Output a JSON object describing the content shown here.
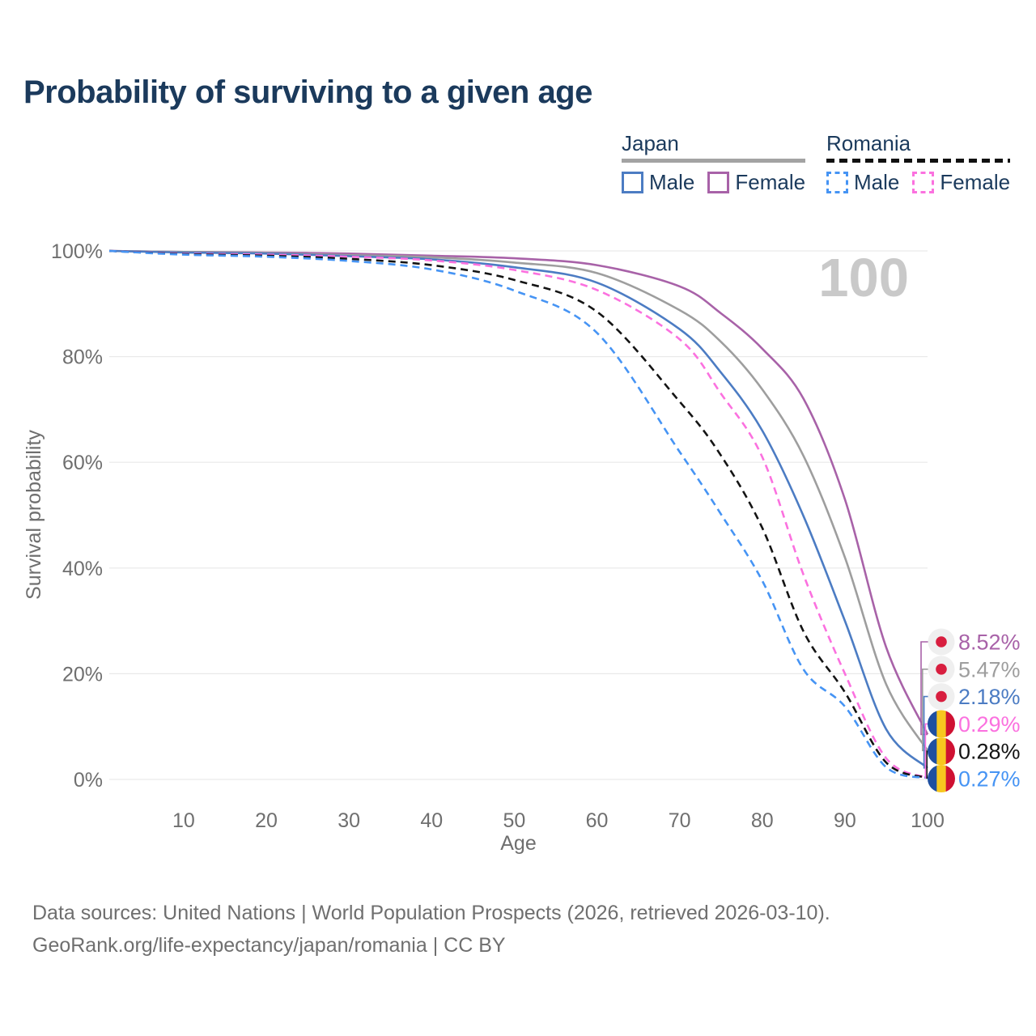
{
  "header": {
    "title": "Probability of surviving to a given age"
  },
  "legend": {
    "groups": [
      {
        "name": "Japan",
        "line_style": "solid",
        "items": [
          {
            "label": "Male",
            "color": "#4c7cc3"
          },
          {
            "label": "Female",
            "color": "#a862a8"
          }
        ]
      },
      {
        "name": "Romania",
        "line_style": "dashed",
        "items": [
          {
            "label": "Male",
            "color": "#4694f4"
          },
          {
            "label": "Female",
            "color": "#fb71df"
          }
        ]
      }
    ]
  },
  "chart_data": {
    "type": "line",
    "title": "Probability of surviving to a given age",
    "xlabel": "Age",
    "ylabel": "Survival probability",
    "xlim": [
      1,
      100
    ],
    "ylim": [
      0,
      100
    ],
    "xticks": [
      10,
      20,
      30,
      40,
      50,
      60,
      70,
      80,
      90,
      100
    ],
    "yticks": [
      {
        "value": 0,
        "label": "0%"
      },
      {
        "value": 20,
        "label": "20%"
      },
      {
        "value": 40,
        "label": "40%"
      },
      {
        "value": 60,
        "label": "60%"
      },
      {
        "value": 80,
        "label": "80%"
      },
      {
        "value": 100,
        "label": "100%"
      }
    ],
    "grid": "horizontal",
    "legend_position": "top-right",
    "age_marker": "100",
    "x": [
      1,
      10,
      20,
      30,
      40,
      50,
      60,
      70,
      75,
      80,
      85,
      90,
      95,
      100
    ],
    "series": [
      {
        "name": "Japan Female",
        "country": "Japan",
        "sex": "Female",
        "flag": "japan",
        "color": "#a862a8",
        "line_style": "solid",
        "end_label": "8.52%",
        "values": [
          100,
          99.8,
          99.7,
          99.5,
          99.1,
          98.6,
          97.3,
          93.3,
          88.2,
          81.5,
          72.0,
          53.0,
          25.0,
          8.52
        ]
      },
      {
        "name": "Japan Both sexes",
        "country": "Japan",
        "sex": "Both sexes",
        "flag": "japan",
        "color": "#9e9e9e",
        "line_style": "solid",
        "end_label": "5.47%",
        "values": [
          100,
          99.8,
          99.6,
          99.2,
          98.8,
          97.8,
          95.8,
          88.8,
          82.8,
          73.8,
          61.2,
          42.0,
          18.0,
          5.47
        ]
      },
      {
        "name": "Japan Male",
        "country": "Japan",
        "sex": "Male",
        "flag": "japan",
        "color": "#4c7cc3",
        "line_style": "solid",
        "end_label": "2.18%",
        "values": [
          100,
          99.7,
          99.5,
          99.0,
          98.4,
          96.9,
          94.0,
          85.2,
          77.0,
          66.0,
          49.8,
          30.0,
          9.5,
          2.18
        ]
      },
      {
        "name": "Romania Female",
        "country": "Romania",
        "sex": "Female",
        "flag": "romania",
        "color": "#fb71df",
        "line_style": "dashed",
        "end_label": "0.29%",
        "values": [
          100,
          99.5,
          99.3,
          98.9,
          98.2,
          96.4,
          92.6,
          83.3,
          73.0,
          61.0,
          38.7,
          20.0,
          4.0,
          0.29
        ]
      },
      {
        "name": "Romania Both sexes",
        "country": "Romania",
        "sex": "Both sexes",
        "flag": "romania",
        "color": "#141414",
        "line_style": "dashed",
        "end_label": "0.28%",
        "values": [
          100,
          99.4,
          99.1,
          98.5,
          97.3,
          94.5,
          88.5,
          71.5,
          61.3,
          47.6,
          28.0,
          16.5,
          3.2,
          0.28
        ]
      },
      {
        "name": "Romania Male",
        "country": "Romania",
        "sex": "Male",
        "flag": "romania",
        "color": "#4694f4",
        "line_style": "dashed",
        "end_label": "0.27%",
        "values": [
          100,
          99.3,
          98.9,
          98.1,
          96.5,
          92.5,
          84.5,
          62.0,
          50.2,
          37.6,
          20.8,
          13.8,
          2.3,
          0.27
        ]
      }
    ]
  },
  "colors": {
    "title": "#1b3a5c",
    "axis_text": "#6f6f6f",
    "gridline": "#e9e9e9",
    "age_marker": "#c9c9c9",
    "japan_flag_bg": "#efefef",
    "japan_flag_dot": "#d81e3f",
    "romania_flag_blue": "#1e4fa0",
    "romania_flag_yellow": "#f7c71f",
    "romania_flag_red": "#cf1132"
  },
  "footer": {
    "line1": "Data sources: United Nations | World Population Prospects (2026, retrieved 2026-03-10).",
    "line2": "GeoRank.org/life-expectancy/japan/romania | CC BY"
  }
}
